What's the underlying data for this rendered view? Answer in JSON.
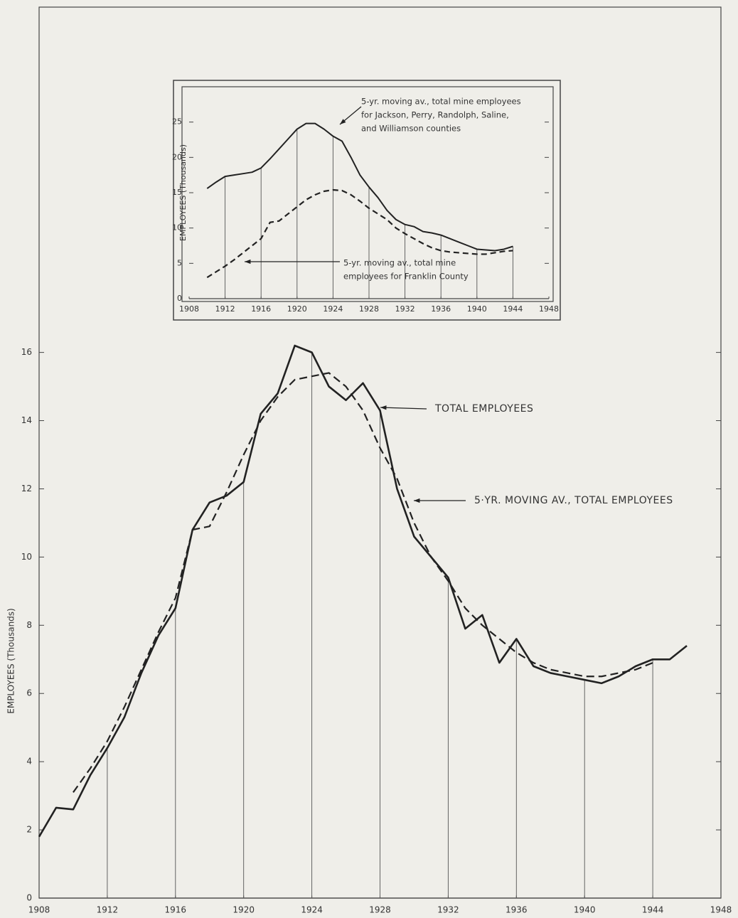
{
  "chart_data": [
    {
      "type": "line",
      "ylabel": "EMPLOYEES (Thousands)",
      "x": [
        1908,
        1909,
        1910,
        1911,
        1912,
        1913,
        1914,
        1915,
        1916,
        1917,
        1918,
        1919,
        1920,
        1921,
        1922,
        1923,
        1924,
        1925,
        1926,
        1927,
        1928,
        1929,
        1930,
        1931,
        1932,
        1933,
        1934,
        1935,
        1936,
        1937,
        1938,
        1939,
        1940,
        1941,
        1942,
        1943,
        1944,
        1945,
        1946
      ],
      "series": [
        {
          "name": "TOTAL EMPLOYEES",
          "color": "#222222",
          "style": "solid",
          "values": [
            1.8,
            2.65,
            2.6,
            3.6,
            4.4,
            5.3,
            6.6,
            7.7,
            8.5,
            10.8,
            11.6,
            11.8,
            12.2,
            14.2,
            14.8,
            16.2,
            16.0,
            15.0,
            14.6,
            15.1,
            14.3,
            12.0,
            10.6,
            10.0,
            9.4,
            7.9,
            8.3,
            6.9,
            7.6,
            6.8,
            6.6,
            6.5,
            6.4,
            6.3,
            6.5,
            6.8,
            7.0,
            7.0,
            7.4
          ]
        },
        {
          "name": "5-YR. MOVING AV., TOTAL EMPLOYEES",
          "color": "#222222",
          "style": "dashed",
          "values": [
            null,
            null,
            3.1,
            3.8,
            4.6,
            5.6,
            6.7,
            7.8,
            8.8,
            10.8,
            10.9,
            11.9,
            13.0,
            14.0,
            14.7,
            15.2,
            15.3,
            15.4,
            15.0,
            14.3,
            13.2,
            12.3,
            11.0,
            10.0,
            9.3,
            8.5,
            8.0,
            7.6,
            7.2,
            6.9,
            6.7,
            6.6,
            6.5,
            6.5,
            6.6,
            6.7,
            6.9,
            null,
            null
          ]
        }
      ],
      "annotations": [
        {
          "lines": [
            "TOTAL EMPLOYEES"
          ]
        },
        {
          "lines": [
            "5·YR. MOVING AV., TOTAL EMPLOYEES"
          ]
        }
      ],
      "xlim": [
        1908,
        1948
      ],
      "xticks": [
        1908,
        1912,
        1916,
        1920,
        1924,
        1928,
        1932,
        1936,
        1940,
        1944,
        1948
      ],
      "ylim": [
        0,
        26
      ],
      "yticks": [
        0,
        2,
        4,
        6,
        8,
        10,
        12,
        14,
        16
      ],
      "drop_lines": true
    },
    {
      "type": "line",
      "ylabel": "EMPLOYEES (Thousands)",
      "x": [
        1910,
        1911,
        1912,
        1913,
        1914,
        1915,
        1916,
        1917,
        1918,
        1919,
        1920,
        1921,
        1922,
        1923,
        1924,
        1925,
        1926,
        1927,
        1928,
        1929,
        1930,
        1931,
        1932,
        1933,
        1934,
        1935,
        1936,
        1937,
        1938,
        1939,
        1940,
        1941,
        1942,
        1943,
        1944
      ],
      "series": [
        {
          "name": "5-yr. moving av., total mine employees for Jackson, Perry, Randolph, Saline, and Williamson counties",
          "color": "#222222",
          "style": "solid",
          "values": [
            15.6,
            16.5,
            17.3,
            17.5,
            17.7,
            17.9,
            18.5,
            19.8,
            21.2,
            22.6,
            24.0,
            24.8,
            24.8,
            24.0,
            23.0,
            22.3,
            20.0,
            17.5,
            15.8,
            14.3,
            12.5,
            11.2,
            10.5,
            10.2,
            9.5,
            9.3,
            9.0,
            8.5,
            8.0,
            7.5,
            7.0,
            6.9,
            6.8,
            7.0,
            7.4
          ]
        },
        {
          "name": "5-yr. moving av., total mine employees for Franklin County",
          "color": "#222222",
          "style": "dashed",
          "values": [
            3.0,
            3.8,
            4.6,
            5.5,
            6.5,
            7.5,
            8.5,
            10.8,
            11.0,
            12.0,
            13.0,
            14.0,
            14.7,
            15.2,
            15.4,
            15.3,
            14.7,
            13.8,
            12.8,
            12.0,
            11.2,
            10.0,
            9.2,
            8.5,
            7.8,
            7.2,
            6.8,
            6.6,
            6.5,
            6.4,
            6.3,
            6.3,
            6.5,
            6.7,
            6.8
          ]
        }
      ],
      "annotations": [
        {
          "lines": [
            "5-yr. moving av., total mine employees",
            "for Jackson, Perry, Randolph, Saline,",
            "and Williamson counties"
          ]
        },
        {
          "lines": [
            "5-yr. moving av., total mine",
            "employees for Franklin County"
          ]
        }
      ],
      "xlim": [
        1908,
        1948
      ],
      "xticks": [
        1908,
        1912,
        1916,
        1920,
        1924,
        1928,
        1932,
        1936,
        1940,
        1944,
        1948
      ],
      "ylim": [
        0,
        30
      ],
      "yticks": [
        0,
        5,
        10,
        15,
        20,
        25
      ],
      "drop_lines": true
    }
  ]
}
